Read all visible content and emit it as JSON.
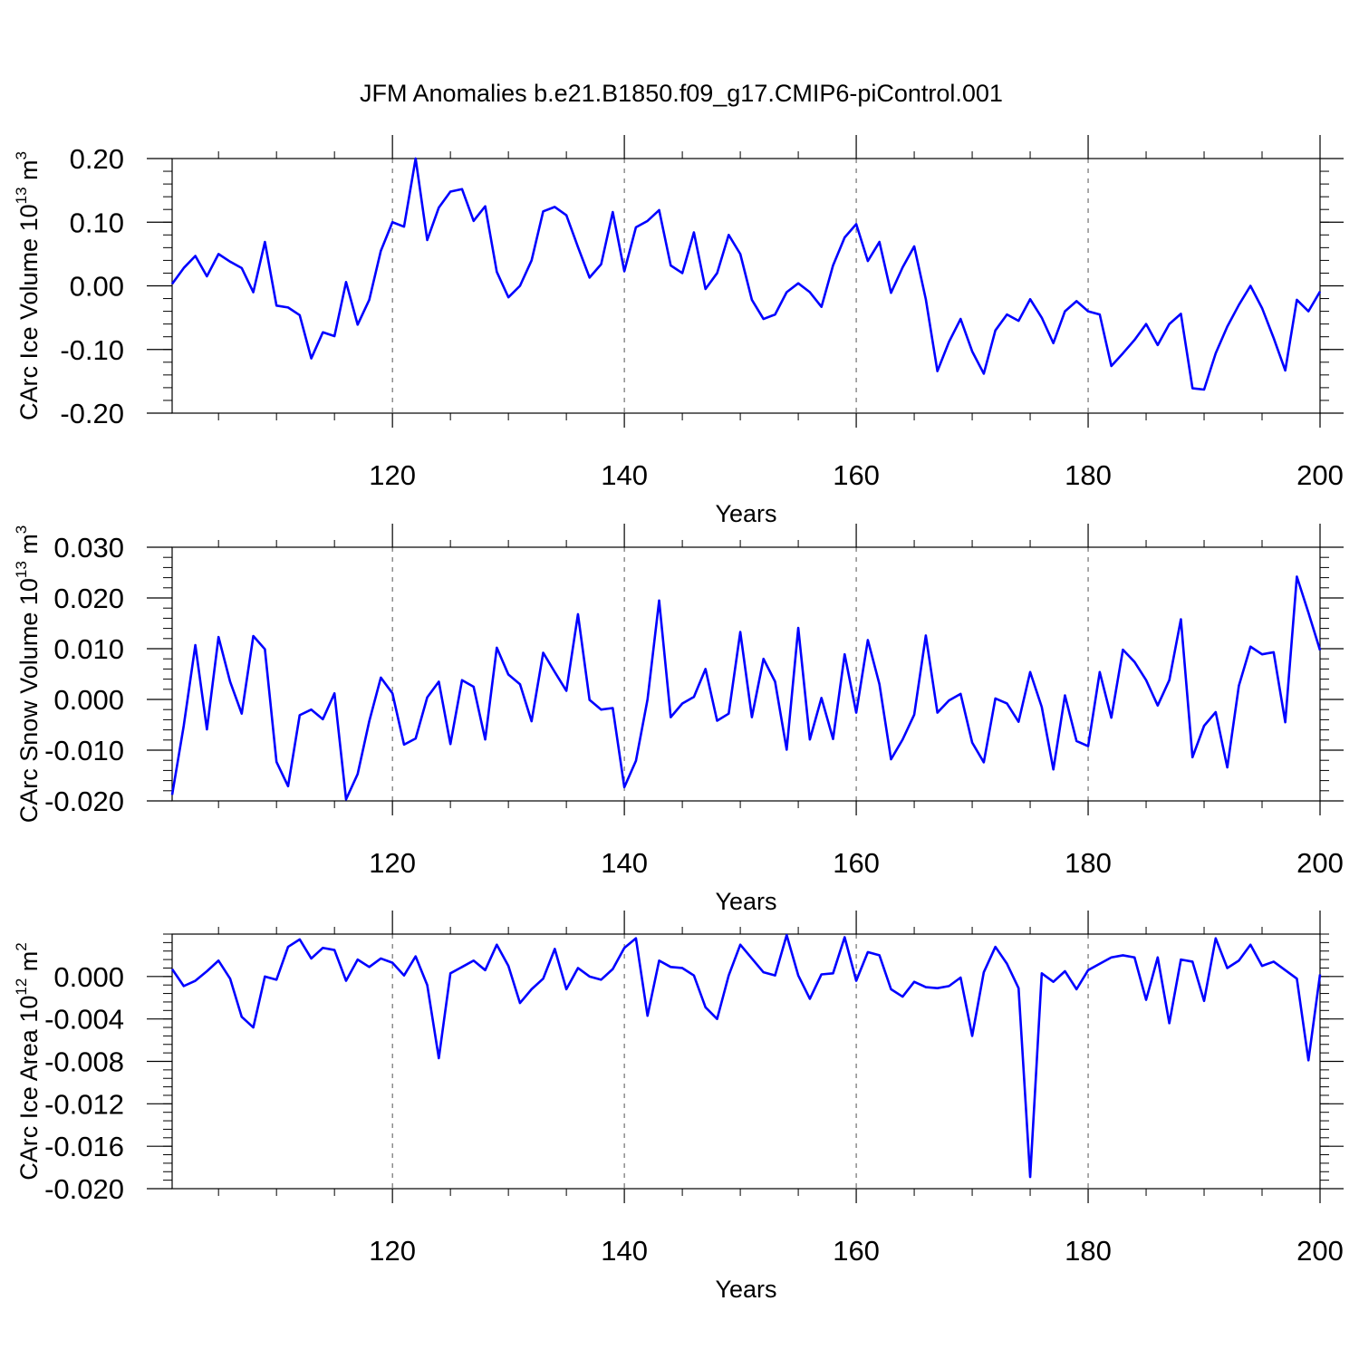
{
  "figure_title": "JFM Anomalies b.e21.B1850.f09_g17.CMIP6-piControl.001",
  "line_color": "#0000ff",
  "chart_data": [
    {
      "type": "line",
      "title": "",
      "xlabel": "Years",
      "ylabel": "CArc Ice Volume 10",
      "ylabel_exp": "13",
      "ylabel_unit": " m",
      "ylabel_unit_exp": "3",
      "xlim": [
        101,
        200
      ],
      "ylim": [
        -0.2,
        0.2
      ],
      "xticks": [
        120,
        140,
        160,
        180,
        200
      ],
      "xtick_labels": [
        "120",
        "140",
        "160",
        "180",
        "200"
      ],
      "yticks": [
        -0.2,
        -0.1,
        0.0,
        0.1,
        0.2
      ],
      "ytick_labels": [
        "-0.20",
        "-0.10",
        "0.00",
        "0.10",
        "0.20"
      ],
      "y_minor_step": 0.02,
      "gridlines_x": [
        120,
        140,
        160,
        180
      ],
      "series": [
        {
          "name": "CArc Ice Volume",
          "x_start": 101,
          "values": [
            0.003,
            0.028,
            0.047,
            0.015,
            0.05,
            0.038,
            0.028,
            -0.01,
            0.069,
            -0.031,
            -0.034,
            -0.046,
            -0.114,
            -0.073,
            -0.079,
            0.006,
            -0.061,
            -0.022,
            0.055,
            0.1,
            0.093,
            0.2,
            0.072,
            0.123,
            0.148,
            0.152,
            0.102,
            0.125,
            0.022,
            -0.018,
            0.0,
            0.04,
            0.117,
            0.124,
            0.111,
            0.061,
            0.013,
            0.034,
            0.116,
            0.023,
            0.092,
            0.102,
            0.119,
            0.032,
            0.02,
            0.084,
            -0.005,
            0.02,
            0.08,
            0.05,
            -0.022,
            -0.052,
            -0.045,
            -0.01,
            0.004,
            -0.01,
            -0.033,
            0.032,
            0.076,
            0.097,
            0.039,
            0.069,
            -0.011,
            0.029,
            0.062,
            -0.021,
            -0.134,
            -0.088,
            -0.052,
            -0.103,
            -0.138,
            -0.07,
            -0.045,
            -0.055,
            -0.021,
            -0.05,
            -0.09,
            -0.04,
            -0.024,
            -0.04,
            -0.045,
            -0.126,
            -0.106,
            -0.085,
            -0.06,
            -0.093,
            -0.06,
            -0.044,
            -0.161,
            -0.163,
            -0.106,
            -0.064,
            -0.03,
            0.0,
            -0.035,
            -0.082,
            -0.133,
            -0.022,
            -0.04,
            -0.009
          ]
        }
      ]
    },
    {
      "type": "line",
      "title": "",
      "xlabel": "Years",
      "ylabel": "CArc Snow Volume 10",
      "ylabel_exp": "13",
      "ylabel_unit": " m",
      "ylabel_unit_exp": "3",
      "xlim": [
        101,
        200
      ],
      "ylim": [
        -0.02,
        0.03
      ],
      "xticks": [
        120,
        140,
        160,
        180,
        200
      ],
      "xtick_labels": [
        "120",
        "140",
        "160",
        "180",
        "200"
      ],
      "yticks": [
        -0.02,
        -0.01,
        0.0,
        0.01,
        0.02,
        0.03
      ],
      "ytick_labels": [
        "-0.020",
        "-0.010",
        "0.000",
        "0.010",
        "0.020",
        "0.030"
      ],
      "y_minor_step": 0.002,
      "gridlines_x": [
        120,
        140,
        160,
        180
      ],
      "series": [
        {
          "name": "CArc Snow Volume",
          "x_start": 101,
          "values": [
            -0.0188,
            -0.0052,
            0.0107,
            -0.0059,
            0.0123,
            0.0035,
            -0.0028,
            0.0125,
            0.0099,
            -0.0123,
            -0.0171,
            -0.0031,
            -0.002,
            -0.0039,
            0.0012,
            -0.0197,
            -0.0147,
            -0.0043,
            0.0043,
            0.0012,
            -0.0089,
            -0.0077,
            0.0004,
            0.0035,
            -0.0088,
            0.0038,
            0.0025,
            -0.0079,
            0.0102,
            0.0049,
            0.003,
            -0.0043,
            0.0092,
            0.0054,
            0.0017,
            0.0168,
            -0.0001,
            -0.002,
            -0.0017,
            -0.0173,
            -0.0121,
            0.0,
            0.0195,
            -0.0035,
            -0.0008,
            0.0005,
            0.006,
            -0.0042,
            -0.0028,
            0.0133,
            -0.0035,
            0.008,
            0.0035,
            -0.0099,
            0.0141,
            -0.0079,
            0.0003,
            -0.0078,
            0.0089,
            -0.0026,
            0.0117,
            0.003,
            -0.0118,
            -0.0079,
            -0.003,
            0.0126,
            -0.0026,
            -0.0002,
            0.0011,
            -0.0085,
            -0.0124,
            0.0002,
            -0.0008,
            -0.0044,
            0.0054,
            -0.0015,
            -0.0138,
            0.0008,
            -0.0082,
            -0.0092,
            0.0054,
            -0.0036,
            0.0098,
            0.0074,
            0.0038,
            -0.0012,
            0.0038,
            0.0158,
            -0.0114,
            -0.0052,
            -0.0025,
            -0.0134,
            0.0027,
            0.0104,
            0.0089,
            0.0093,
            -0.0045,
            0.0242,
            0.0171,
            0.0097
          ]
        }
      ]
    },
    {
      "type": "line",
      "title": "",
      "xlabel": "Years",
      "ylabel": "CArc Ice Area 10",
      "ylabel_exp": "12",
      "ylabel_unit": " m",
      "ylabel_unit_exp": "2",
      "xlim": [
        101,
        200
      ],
      "ylim": [
        -0.02,
        0.004
      ],
      "xticks": [
        120,
        140,
        160,
        180,
        200
      ],
      "xtick_labels": [
        "120",
        "140",
        "160",
        "180",
        "200"
      ],
      "yticks": [
        -0.02,
        -0.016,
        -0.012,
        -0.008,
        -0.004,
        0.0
      ],
      "ytick_labels": [
        "-0.020",
        "-0.016",
        "-0.012",
        "-0.008",
        "-0.004",
        "0.000"
      ],
      "y_minor_step": 0.0008,
      "gridlines_x": [
        120,
        140,
        160,
        180
      ],
      "series": [
        {
          "name": "CArc Ice Area",
          "x_start": 101,
          "values": [
            0.0007,
            -0.0009,
            -0.0004,
            0.0005,
            0.0015,
            -0.0002,
            -0.0038,
            -0.0048,
            0.0,
            -0.0003,
            0.0028,
            0.0035,
            0.0017,
            0.0027,
            0.0025,
            -0.0004,
            0.0016,
            0.0009,
            0.0017,
            0.0013,
            0.0001,
            0.0019,
            -0.0008,
            -0.0077,
            0.0003,
            0.0009,
            0.0015,
            0.0006,
            0.003,
            0.001,
            -0.0025,
            -0.0012,
            -0.0002,
            0.0026,
            -0.0012,
            0.0008,
            0.0,
            -0.0003,
            0.0007,
            0.0027,
            0.0036,
            -0.0037,
            0.0015,
            0.0009,
            0.0008,
            0.0001,
            -0.0029,
            -0.004,
            0.0001,
            0.003,
            0.0017,
            0.0004,
            0.0001,
            0.0039,
            0.0001,
            -0.0021,
            0.0002,
            0.0003,
            0.0037,
            -0.0004,
            0.0023,
            0.002,
            -0.0012,
            -0.0019,
            -0.0005,
            -0.001,
            -0.0011,
            -0.0009,
            -0.0001,
            -0.0056,
            0.0004,
            0.0028,
            0.0012,
            -0.0011,
            -0.0189,
            0.0003,
            -0.0005,
            0.0005,
            -0.0012,
            0.0006,
            0.0012,
            0.0018,
            0.002,
            0.0018,
            -0.0022,
            0.0018,
            -0.0044,
            0.0016,
            0.0014,
            -0.0023,
            0.0036,
            0.0008,
            0.0015,
            0.003,
            0.001,
            0.0014,
            0.0006,
            -0.0002,
            -0.0079,
            0.0002
          ]
        }
      ]
    }
  ]
}
